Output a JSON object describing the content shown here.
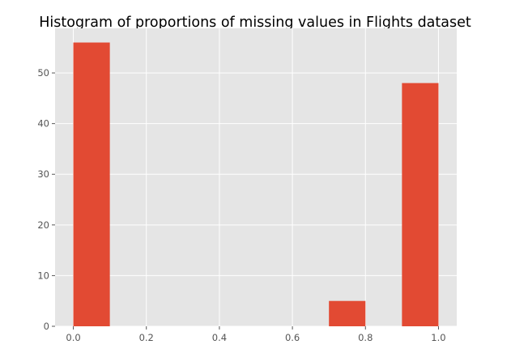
{
  "chart_data": {
    "type": "bar",
    "title": "Histogram of proportions of missing values in Flights dataset",
    "xlabel": "",
    "ylabel": "",
    "bins": [
      {
        "start": 0.0,
        "end": 0.1,
        "count": 56
      },
      {
        "start": 0.1,
        "end": 0.2,
        "count": 0
      },
      {
        "start": 0.2,
        "end": 0.3,
        "count": 0
      },
      {
        "start": 0.3,
        "end": 0.4,
        "count": 0
      },
      {
        "start": 0.4,
        "end": 0.5,
        "count": 0
      },
      {
        "start": 0.5,
        "end": 0.6,
        "count": 0
      },
      {
        "start": 0.6,
        "end": 0.7,
        "count": 0
      },
      {
        "start": 0.7,
        "end": 0.8,
        "count": 5
      },
      {
        "start": 0.8,
        "end": 0.9,
        "count": 0
      },
      {
        "start": 0.9,
        "end": 1.0,
        "count": 48
      }
    ],
    "xlim": [
      -0.05,
      1.05
    ],
    "ylim": [
      0,
      58.8
    ],
    "xticks": [
      "0.0",
      "0.2",
      "0.4",
      "0.6",
      "0.8",
      "1.0"
    ],
    "xtick_values": [
      0.0,
      0.2,
      0.4,
      0.6,
      0.8,
      1.0
    ],
    "yticks": [
      "0",
      "10",
      "20",
      "30",
      "40",
      "50"
    ],
    "ytick_values": [
      0,
      10,
      20,
      30,
      40,
      50
    ],
    "grid": true,
    "colors": {
      "bar": "#E24A33",
      "background": "#E5E5E5",
      "grid": "#FFFFFF"
    }
  }
}
